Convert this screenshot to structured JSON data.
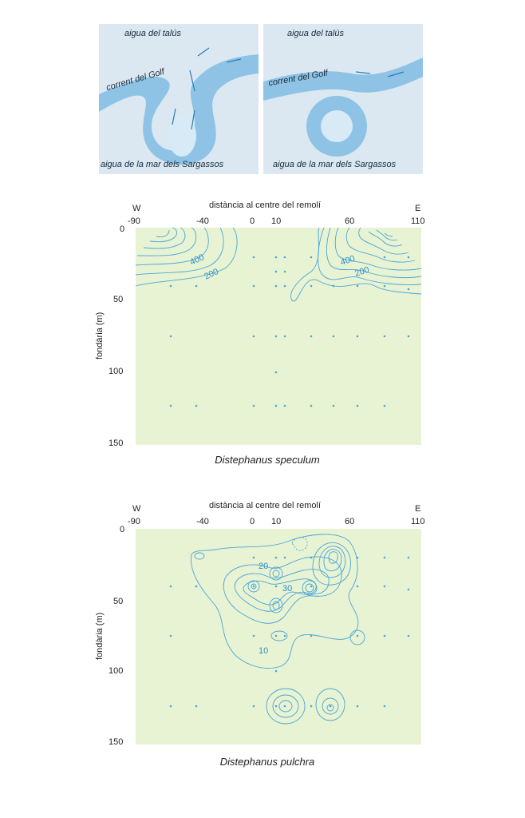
{
  "top_diagrams": {
    "left": {
      "water_top": "aigua del talús",
      "current": "corrent del Golf",
      "water_bottom": "aigua de la mar dels Sargassos"
    },
    "right": {
      "water_top": "aigua del talús",
      "current": "corrent del Golf",
      "water_bottom": "aigua de la mar dels Sargassos"
    }
  },
  "plots": [
    {
      "west": "W",
      "east": "E",
      "xlabel": "distància al centre del remolí",
      "ylabel": "fondària (m)",
      "xticks": [
        "-90",
        "-40",
        "0",
        "10",
        "60",
        "110"
      ],
      "yticks": [
        "0",
        "50",
        "100",
        "150"
      ],
      "contour_labels": [
        "400",
        "200",
        "400",
        "200"
      ],
      "caption": "Distephanus speculum"
    },
    {
      "west": "W",
      "east": "E",
      "xlabel": "distància al centre del remolí",
      "ylabel": "fondària (m)",
      "xticks": [
        "-90",
        "-40",
        "0",
        "10",
        "60",
        "110"
      ],
      "yticks": [
        "0",
        "50",
        "100",
        "150"
      ],
      "contour_labels": [
        "20",
        "30",
        "10"
      ],
      "caption": "Distephanus pulchra"
    }
  ],
  "colors": {
    "water_light": "#dce9f3",
    "current_blue": "#8ec3e6",
    "plot_bg": "#e8f3d3",
    "contour": "#4aa6d6"
  }
}
